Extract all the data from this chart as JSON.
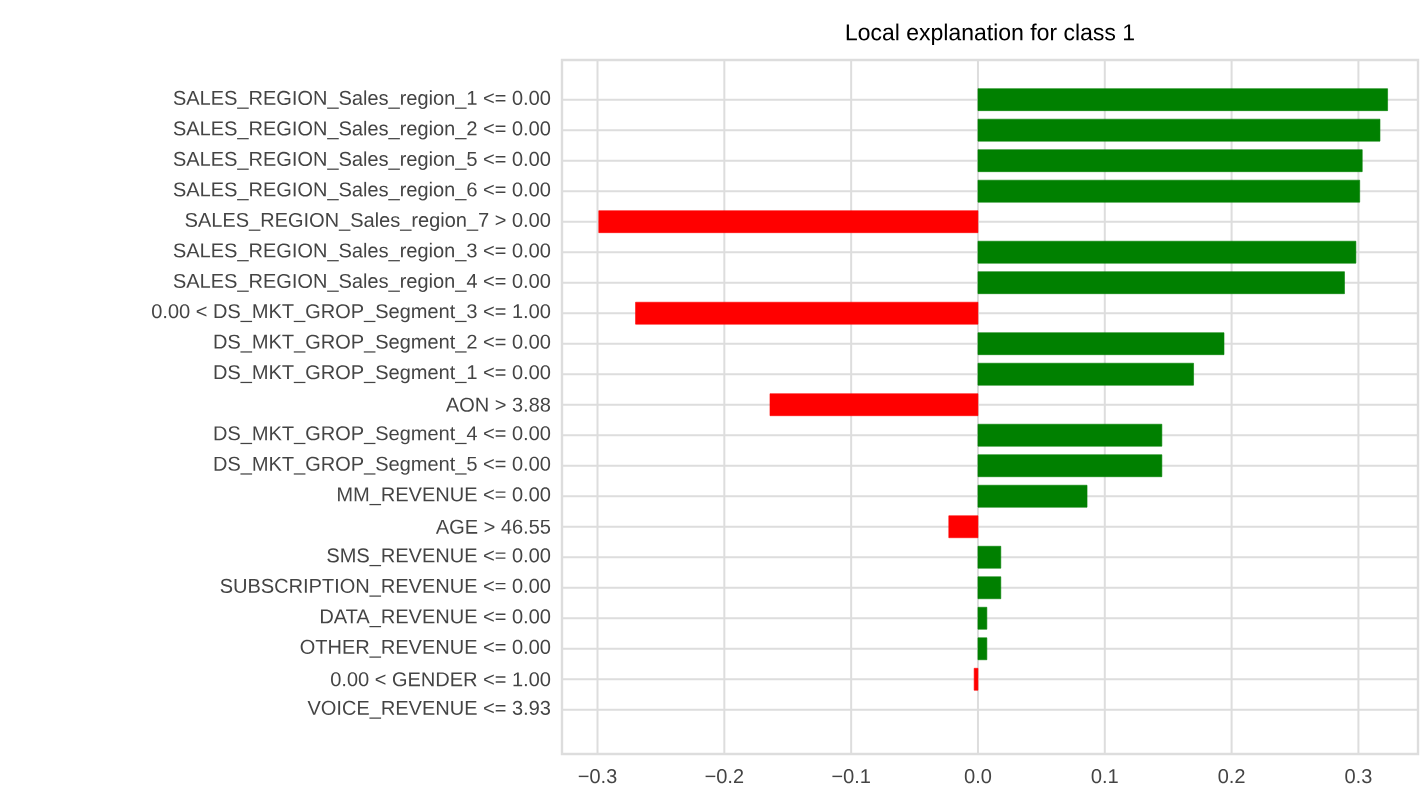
{
  "chart_data": {
    "type": "bar",
    "orientation": "horizontal",
    "title": "Local explanation for class 1",
    "categories": [
      "SALES_REGION_Sales_region_1 <= 0.00",
      "SALES_REGION_Sales_region_2 <= 0.00",
      "SALES_REGION_Sales_region_5 <= 0.00",
      "SALES_REGION_Sales_region_6 <= 0.00",
      "SALES_REGION_Sales_region_7 > 0.00",
      "SALES_REGION_Sales_region_3 <= 0.00",
      "SALES_REGION_Sales_region_4 <= 0.00",
      "0.00 < DS_MKT_GROP_Segment_3 <= 1.00",
      "DS_MKT_GROP_Segment_2 <= 0.00",
      "DS_MKT_GROP_Segment_1 <= 0.00",
      "AON > 3.88",
      "DS_MKT_GROP_Segment_4 <= 0.00",
      "DS_MKT_GROP_Segment_5 <= 0.00",
      "MM_REVENUE <= 0.00",
      "AGE > 46.55",
      "SMS_REVENUE <= 0.00",
      "SUBSCRIPTION_REVENUE <= 0.00",
      "DATA_REVENUE <= 0.00",
      "OTHER_REVENUE <= 0.00",
      "0.00 < GENDER <= 1.00",
      "VOICE_REVENUE <= 3.93"
    ],
    "values": [
      0.323,
      0.317,
      0.303,
      0.301,
      -0.299,
      0.298,
      0.289,
      -0.27,
      0.194,
      0.17,
      -0.164,
      0.145,
      0.145,
      0.086,
      -0.023,
      0.018,
      0.018,
      0.007,
      0.007,
      -0.003,
      null
    ],
    "colors": [
      "#008000",
      "#008000",
      "#008000",
      "#008000",
      "#ff0000",
      "#008000",
      "#008000",
      "#ff0000",
      "#008000",
      "#008000",
      "#ff0000",
      "#008000",
      "#008000",
      "#008000",
      "#ff0000",
      "#008000",
      "#008000",
      "#008000",
      "#008000",
      "#ff0000",
      "#008000"
    ],
    "xlim": [
      -0.328,
      0.347
    ],
    "xticks": [
      {
        "value": -0.3,
        "label": "−0.3"
      },
      {
        "value": -0.2,
        "label": "−0.2"
      },
      {
        "value": -0.1,
        "label": "−0.1"
      },
      {
        "value": 0,
        "label": "0.0"
      },
      0.1,
      0.2,
      0.3
    ],
    "grid": true
  }
}
